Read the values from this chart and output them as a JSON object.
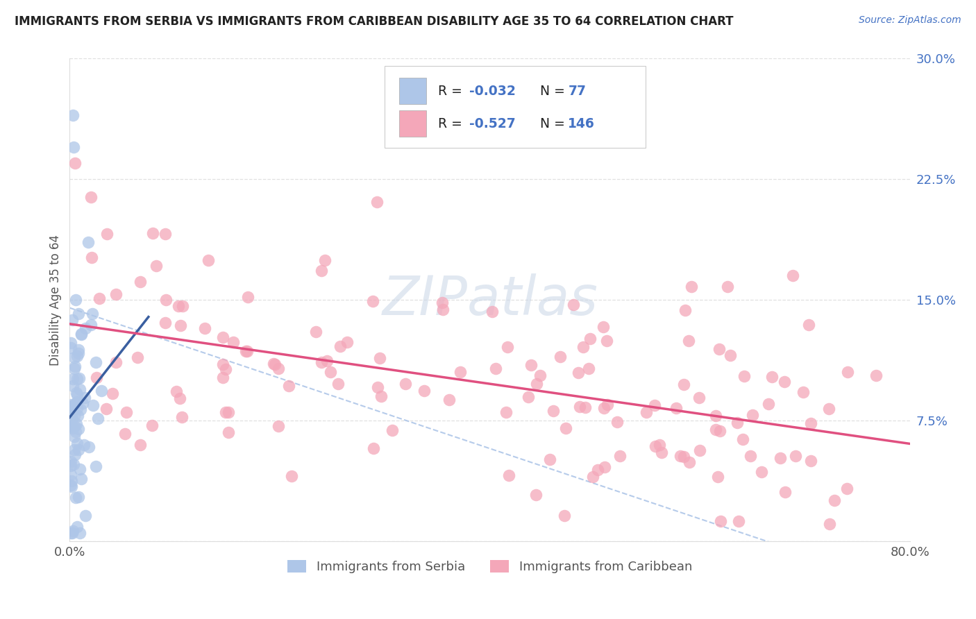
{
  "title": "IMMIGRANTS FROM SERBIA VS IMMIGRANTS FROM CARIBBEAN DISABILITY AGE 35 TO 64 CORRELATION CHART",
  "source": "Source: ZipAtlas.com",
  "ylabel": "Disability Age 35 to 64",
  "xlim": [
    0.0,
    0.8
  ],
  "ylim": [
    0.0,
    0.3
  ],
  "yticks": [
    0.0,
    0.075,
    0.15,
    0.225,
    0.3
  ],
  "ytick_labels": [
    "",
    "7.5%",
    "15.0%",
    "22.5%",
    "30.0%"
  ],
  "xticks": [
    0.0,
    0.8
  ],
  "xtick_labels": [
    "0.0%",
    "80.0%"
  ],
  "serbia_R": -0.032,
  "serbia_N": 77,
  "caribbean_R": -0.527,
  "caribbean_N": 146,
  "serbia_color": "#aec6e8",
  "caribbean_color": "#f4a7b9",
  "serbia_line_color": "#3a5fa0",
  "caribbean_line_color": "#e05080",
  "dashed_line_color": "#aec6e8",
  "watermark_color": "#cdd9e8",
  "legend_labels": [
    "Immigrants from Serbia",
    "Immigrants from Caribbean"
  ],
  "title_color": "#222222",
  "axis_label_color": "#555555",
  "tick_color_right": "#4472c4",
  "background_color": "#ffffff",
  "grid_color": "#e0e0e0",
  "legend_text_color": "#222222",
  "legend_value_color": "#4472c4"
}
